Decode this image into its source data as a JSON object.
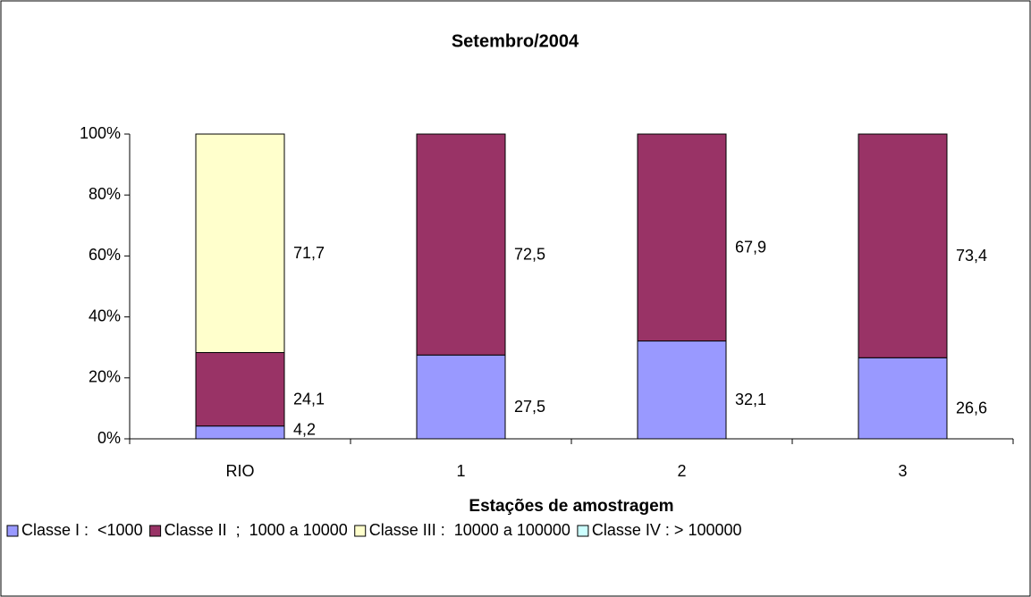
{
  "chart_data": {
    "type": "stacked_bar",
    "title": "Setembro/2004",
    "x_label": "Estações de amostragem",
    "categories": [
      "RIO",
      "1",
      "2",
      "3"
    ],
    "series": [
      {
        "name": "Classe I :  <1000",
        "color": "#9999ff",
        "values": [
          4.2,
          27.5,
          32.1,
          26.6
        ],
        "value_labels": [
          "4,2",
          "27,5",
          "32,1",
          "26,6"
        ]
      },
      {
        "name": "Classe II  ;  1000 a 10000",
        "color": "#993366",
        "values": [
          24.1,
          72.5,
          67.9,
          73.4
        ],
        "value_labels": [
          "24,1",
          "72,5",
          "67,9",
          "73,4"
        ]
      },
      {
        "name": "Classe III :  10000 a 100000",
        "color": "#ffffcc",
        "values": [
          71.7,
          null,
          null,
          null
        ],
        "value_labels": [
          "71,7",
          null,
          null,
          null
        ]
      },
      {
        "name": "Classe IV : > 100000",
        "color": "#ccffff",
        "values": [
          null,
          null,
          null,
          null
        ]
      }
    ],
    "ylim": [
      0,
      100
    ],
    "yticks": [
      {
        "value": 0,
        "label": "0%"
      },
      {
        "value": 20,
        "label": "20%"
      },
      {
        "value": 40,
        "label": "40%"
      },
      {
        "value": 60,
        "label": "60%"
      },
      {
        "value": 80,
        "label": "80%"
      },
      {
        "value": 100,
        "label": "100%"
      }
    ]
  }
}
